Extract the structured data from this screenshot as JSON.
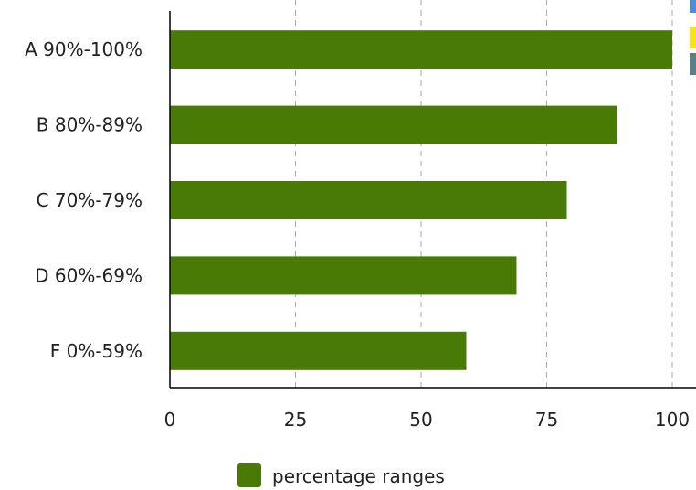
{
  "chart_data": {
    "type": "bar",
    "orientation": "horizontal",
    "categories": [
      "A 90%-100%",
      "B 80%-89%",
      "C 70%-79%",
      "D 60%-69%",
      "F 0%-59%"
    ],
    "series": [
      {
        "name": "percentage ranges",
        "values": [
          100,
          89,
          79,
          69,
          59
        ],
        "color": "#4a7a06"
      }
    ],
    "xlim": [
      0,
      100
    ],
    "xticks": [
      0,
      25,
      50,
      75,
      100
    ],
    "grid": "vertical-dashed",
    "legend": {
      "placement": "bottom-center"
    },
    "partial_legend_swatches": [
      "#4a90d9",
      "#f5e31c",
      "#5a7f86"
    ]
  }
}
